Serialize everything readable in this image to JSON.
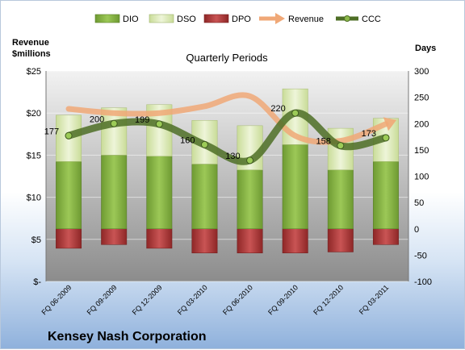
{
  "chart_data": {
    "type": "bar",
    "title": "Quarterly Periods",
    "company": "Kensey Nash Corporation",
    "categories": [
      "FQ 06-2009",
      "FQ 09-2009",
      "FQ 12-2009",
      "FQ 03-2010",
      "FQ 06-2010",
      "FQ 09-2010",
      "FQ 12-2010",
      "FQ 03-2011"
    ],
    "left_axis": {
      "label_line1": "Revenue",
      "label_line2": "$millions",
      "range": [
        0,
        25
      ],
      "ticks": [
        "$-",
        "$5",
        "$10",
        "$15",
        "$20",
        "$25"
      ]
    },
    "right_axis": {
      "label": "Days",
      "range": [
        -100,
        300
      ],
      "ticks": [
        "-100",
        "-50",
        "0",
        "50",
        "100",
        "150",
        "200",
        "250",
        "300"
      ]
    },
    "legend_position": "top",
    "series": [
      {
        "name": "DIO",
        "axis": "right",
        "kind": "stacked-bar",
        "color": "#8cb94a",
        "values": [
          128,
          140,
          138,
          123,
          112,
          160,
          112,
          128
        ]
      },
      {
        "name": "DSO",
        "axis": "right",
        "kind": "stacked-bar",
        "color": "#dbe8b9",
        "values": [
          88,
          90,
          98,
          83,
          84,
          106,
          79,
          82
        ]
      },
      {
        "name": "DPO",
        "axis": "right",
        "kind": "bar-negative",
        "color": "#b33c3c",
        "values": [
          -37,
          -30,
          -37,
          -46,
          -46,
          -46,
          -44,
          -30
        ]
      },
      {
        "name": "Revenue",
        "axis": "left",
        "kind": "line",
        "color": "#f0a877",
        "values": [
          20.5,
          20.0,
          20.0,
          20.8,
          22.0,
          17.3,
          16.7,
          18.7
        ]
      },
      {
        "name": "CCC",
        "axis": "right",
        "kind": "line-markers",
        "color": "#4e6e26",
        "values": [
          177,
          200,
          199,
          160,
          130,
          220,
          158,
          173
        ],
        "labels": [
          "177",
          "200",
          "199",
          "160",
          "130",
          "220",
          "158",
          "173"
        ]
      }
    ],
    "grid": true
  }
}
